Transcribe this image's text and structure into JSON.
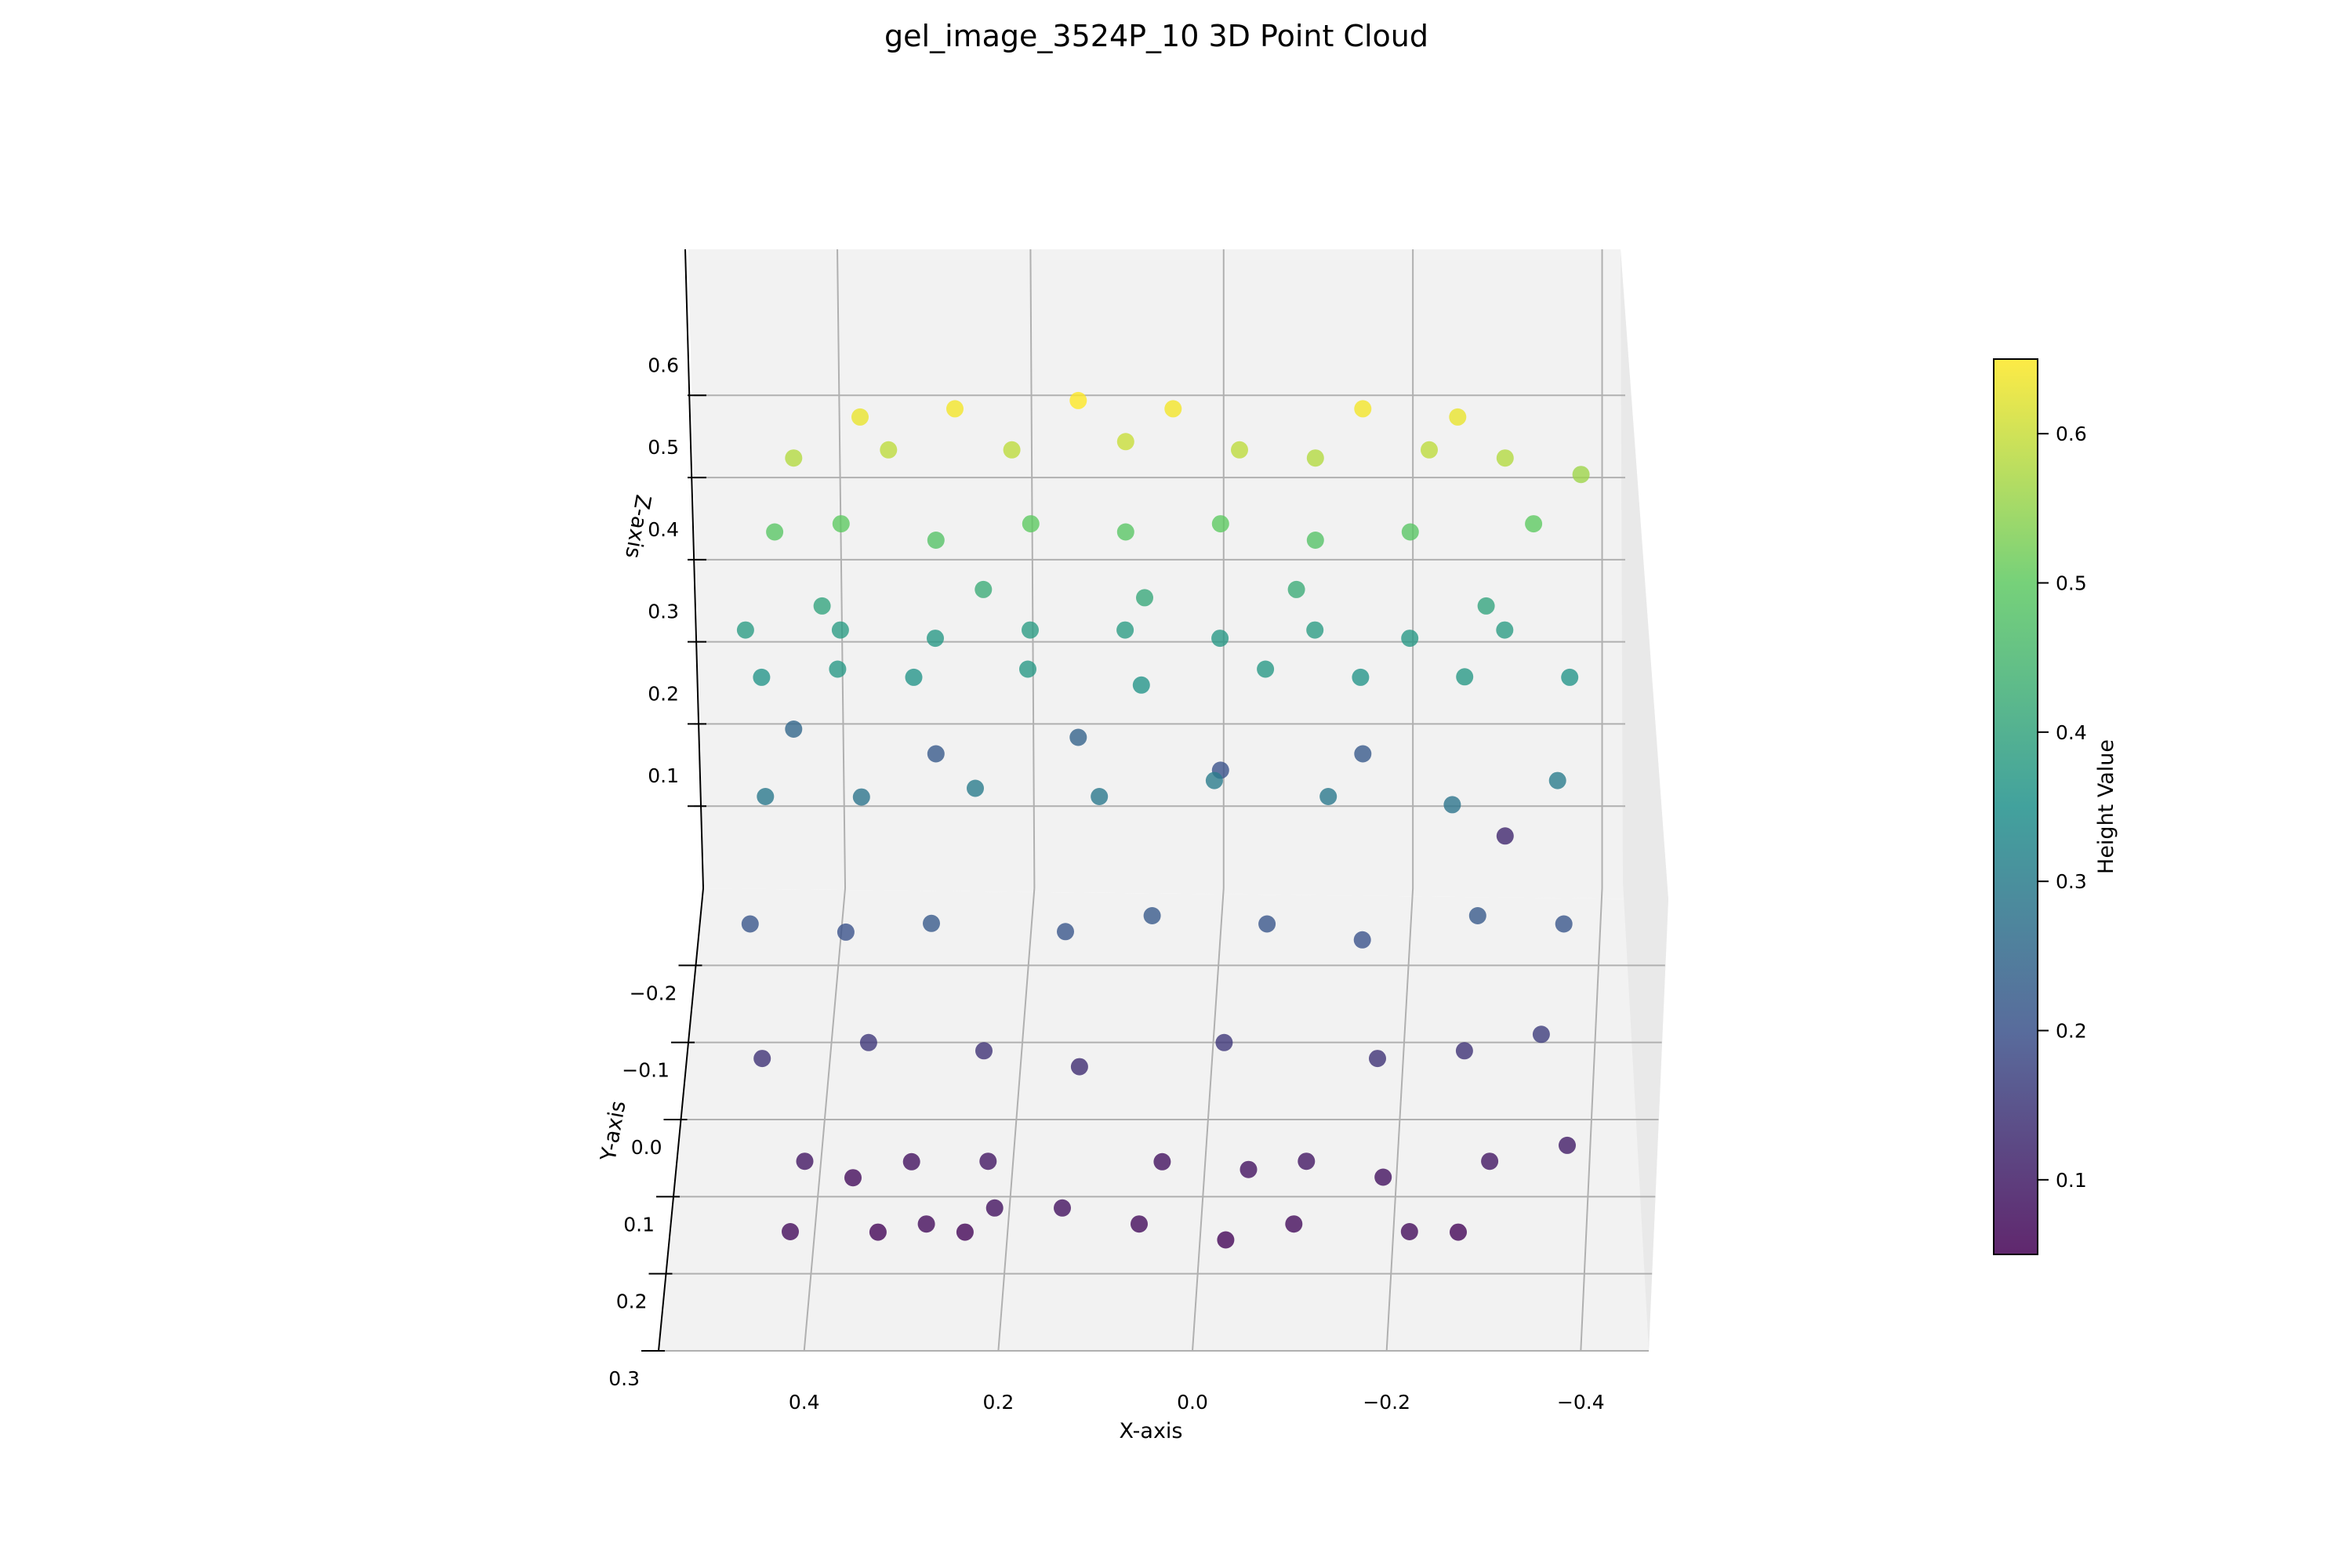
{
  "chart_data": {
    "type": "scatter",
    "title": "gel_image_3524P_10 3D Point Cloud",
    "xlabel": "X-axis",
    "ylabel": "Y-axis",
    "zlabel": "Z-axis",
    "colorbar_label": "Height Value",
    "colormap": "viridis",
    "colormap_stops": [
      "#440154",
      "#3b528b",
      "#21918c",
      "#5ec962",
      "#fde725"
    ],
    "point_alpha": 0.8,
    "xlim": [
      0.55,
      -0.47
    ],
    "ylim": [
      -0.3,
      0.3
    ],
    "zlim": [
      0.0,
      0.7
    ],
    "color_range": [
      0.05,
      0.65
    ],
    "x_ticks": [
      "0.4",
      "0.2",
      "0.0",
      "−0.2",
      "−0.4"
    ],
    "x_tick_values": [
      0.4,
      0.2,
      0.0,
      -0.2,
      -0.4
    ],
    "y_ticks": [
      "−0.2",
      "−0.1",
      "0.0",
      "0.1",
      "0.2",
      "0.3"
    ],
    "y_tick_values": [
      -0.2,
      -0.1,
      0.0,
      0.1,
      0.2,
      0.3
    ],
    "z_ticks": [
      "0.1",
      "0.2",
      "0.3",
      "0.4",
      "0.5",
      "0.6"
    ],
    "z_tick_values": [
      0.1,
      0.2,
      0.3,
      0.4,
      0.5,
      0.6
    ],
    "colorbar_ticks": [
      "0.1",
      "0.2",
      "0.3",
      "0.4",
      "0.5",
      "0.6"
    ],
    "colorbar_tick_values": [
      0.1,
      0.2,
      0.3,
      0.4,
      0.5,
      0.6
    ],
    "points": [
      {
        "x": 0.42,
        "y": 0.22,
        "z": 0.07
      },
      {
        "x": 0.33,
        "y": 0.21,
        "z": 0.06
      },
      {
        "x": 0.28,
        "y": 0.21,
        "z": 0.07
      },
      {
        "x": 0.24,
        "y": 0.21,
        "z": 0.06
      },
      {
        "x": 0.21,
        "y": 0.2,
        "z": 0.08
      },
      {
        "x": 0.14,
        "y": 0.2,
        "z": 0.08
      },
      {
        "x": 0.06,
        "y": 0.21,
        "z": 0.07
      },
      {
        "x": -0.03,
        "y": 0.22,
        "z": 0.06
      },
      {
        "x": -0.1,
        "y": 0.21,
        "z": 0.07
      },
      {
        "x": -0.22,
        "y": 0.22,
        "z": 0.07
      },
      {
        "x": -0.27,
        "y": 0.21,
        "z": 0.06
      },
      {
        "x": 0.41,
        "y": 0.15,
        "z": 0.09
      },
      {
        "x": 0.36,
        "y": 0.15,
        "z": 0.07
      },
      {
        "x": 0.3,
        "y": 0.14,
        "z": 0.08
      },
      {
        "x": 0.22,
        "y": 0.15,
        "z": 0.09
      },
      {
        "x": 0.04,
        "y": 0.14,
        "z": 0.08
      },
      {
        "x": -0.05,
        "y": 0.15,
        "z": 0.08
      },
      {
        "x": -0.11,
        "y": 0.15,
        "z": 0.09
      },
      {
        "x": -0.19,
        "y": 0.16,
        "z": 0.08
      },
      {
        "x": -0.3,
        "y": 0.15,
        "z": 0.09
      },
      {
        "x": -0.38,
        "y": 0.14,
        "z": 0.1
      },
      {
        "x": 0.46,
        "y": 0.07,
        "z": 0.14
      },
      {
        "x": 0.35,
        "y": 0.06,
        "z": 0.15
      },
      {
        "x": 0.23,
        "y": 0.06,
        "z": 0.14
      },
      {
        "x": 0.13,
        "y": 0.07,
        "z": 0.13
      },
      {
        "x": -0.02,
        "y": 0.06,
        "z": 0.15
      },
      {
        "x": -0.18,
        "y": 0.07,
        "z": 0.14
      },
      {
        "x": -0.27,
        "y": 0.06,
        "z": 0.14
      },
      {
        "x": -0.35,
        "y": 0.06,
        "z": 0.16
      },
      {
        "x": 0.48,
        "y": -0.03,
        "z": 0.21
      },
      {
        "x": 0.38,
        "y": -0.03,
        "z": 0.2
      },
      {
        "x": 0.29,
        "y": -0.02,
        "z": 0.22
      },
      {
        "x": 0.15,
        "y": -0.02,
        "z": 0.21
      },
      {
        "x": 0.06,
        "y": -0.03,
        "z": 0.22
      },
      {
        "x": -0.06,
        "y": -0.03,
        "z": 0.21
      },
      {
        "x": -0.16,
        "y": -0.02,
        "z": 0.2
      },
      {
        "x": -0.28,
        "y": -0.03,
        "z": 0.22
      },
      {
        "x": -0.37,
        "y": -0.03,
        "z": 0.21
      },
      {
        "x": 0.47,
        "y": -0.11,
        "z": 0.29
      },
      {
        "x": 0.37,
        "y": -0.12,
        "z": 0.28
      },
      {
        "x": 0.25,
        "y": -0.11,
        "z": 0.3
      },
      {
        "x": 0.12,
        "y": -0.11,
        "z": 0.29
      },
      {
        "x": 0.0,
        "y": -0.12,
        "z": 0.3
      },
      {
        "x": -0.12,
        "y": -0.11,
        "z": 0.29
      },
      {
        "x": -0.25,
        "y": -0.11,
        "z": 0.28
      },
      {
        "x": -0.36,
        "y": -0.12,
        "z": 0.3
      },
      {
        "x": 0.48,
        "y": -0.19,
        "z": 0.36
      },
      {
        "x": 0.4,
        "y": -0.19,
        "z": 0.37
      },
      {
        "x": 0.32,
        "y": -0.19,
        "z": 0.36
      },
      {
        "x": 0.2,
        "y": -0.19,
        "z": 0.37
      },
      {
        "x": 0.08,
        "y": -0.18,
        "z": 0.36
      },
      {
        "x": -0.05,
        "y": -0.19,
        "z": 0.37
      },
      {
        "x": -0.15,
        "y": -0.19,
        "z": 0.36
      },
      {
        "x": -0.26,
        "y": -0.18,
        "z": 0.37
      },
      {
        "x": -0.37,
        "y": -0.19,
        "z": 0.36
      },
      {
        "x": 0.5,
        "y": -0.23,
        "z": 0.38
      },
      {
        "x": 0.4,
        "y": -0.23,
        "z": 0.38
      },
      {
        "x": 0.3,
        "y": -0.23,
        "z": 0.37
      },
      {
        "x": 0.2,
        "y": -0.23,
        "z": 0.38
      },
      {
        "x": 0.1,
        "y": -0.23,
        "z": 0.38
      },
      {
        "x": 0.0,
        "y": -0.23,
        "z": 0.37
      },
      {
        "x": -0.1,
        "y": -0.23,
        "z": 0.38
      },
      {
        "x": -0.2,
        "y": -0.23,
        "z": 0.37
      },
      {
        "x": -0.3,
        "y": -0.23,
        "z": 0.38
      },
      {
        "x": 0.45,
        "y": -0.24,
        "z": 0.25
      },
      {
        "x": 0.3,
        "y": -0.24,
        "z": 0.22
      },
      {
        "x": 0.15,
        "y": -0.24,
        "z": 0.24
      },
      {
        "x": 0.0,
        "y": -0.24,
        "z": 0.2
      },
      {
        "x": -0.15,
        "y": -0.24,
        "z": 0.22
      },
      {
        "x": -0.3,
        "y": -0.24,
        "z": 0.12
      },
      {
        "x": 0.47,
        "y": -0.24,
        "z": 0.49
      },
      {
        "x": 0.4,
        "y": -0.24,
        "z": 0.5
      },
      {
        "x": 0.3,
        "y": -0.24,
        "z": 0.48
      },
      {
        "x": 0.2,
        "y": -0.24,
        "z": 0.5
      },
      {
        "x": 0.1,
        "y": -0.24,
        "z": 0.49
      },
      {
        "x": 0.0,
        "y": -0.24,
        "z": 0.5
      },
      {
        "x": -0.1,
        "y": -0.24,
        "z": 0.48
      },
      {
        "x": -0.2,
        "y": -0.24,
        "z": 0.49
      },
      {
        "x": -0.33,
        "y": -0.24,
        "z": 0.5
      },
      {
        "x": 0.38,
        "y": -0.24,
        "z": 0.63
      },
      {
        "x": 0.28,
        "y": -0.24,
        "z": 0.64
      },
      {
        "x": 0.15,
        "y": -0.24,
        "z": 0.65
      },
      {
        "x": 0.05,
        "y": -0.24,
        "z": 0.64
      },
      {
        "x": -0.15,
        "y": -0.24,
        "z": 0.64
      },
      {
        "x": -0.25,
        "y": -0.24,
        "z": 0.63
      },
      {
        "x": 0.45,
        "y": -0.24,
        "z": 0.58
      },
      {
        "x": 0.35,
        "y": -0.24,
        "z": 0.59
      },
      {
        "x": 0.22,
        "y": -0.24,
        "z": 0.59
      },
      {
        "x": 0.1,
        "y": -0.24,
        "z": 0.6
      },
      {
        "x": -0.02,
        "y": -0.24,
        "z": 0.59
      },
      {
        "x": -0.1,
        "y": -0.24,
        "z": 0.58
      },
      {
        "x": -0.22,
        "y": -0.24,
        "z": 0.59
      },
      {
        "x": -0.3,
        "y": -0.24,
        "z": 0.58
      },
      {
        "x": -0.38,
        "y": -0.24,
        "z": 0.56
      },
      {
        "x": 0.42,
        "y": -0.24,
        "z": 0.4
      },
      {
        "x": 0.25,
        "y": -0.24,
        "z": 0.42
      },
      {
        "x": 0.08,
        "y": -0.24,
        "z": 0.41
      },
      {
        "x": -0.08,
        "y": -0.24,
        "z": 0.42
      },
      {
        "x": -0.28,
        "y": -0.24,
        "z": 0.4
      }
    ]
  }
}
